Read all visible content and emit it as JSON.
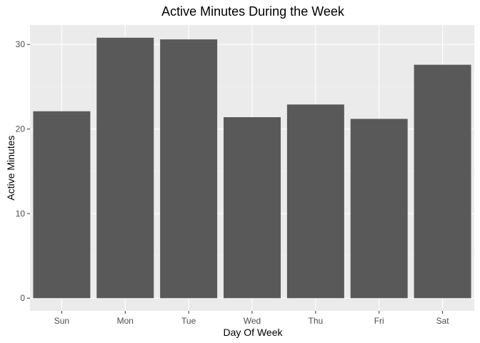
{
  "chart_data": {
    "type": "bar",
    "title": "Active Minutes During the Week",
    "xlabel": "Day Of Week",
    "ylabel": "Active Minutes",
    "categories": [
      "Sun",
      "Mon",
      "Tue",
      "Wed",
      "Thu",
      "Fri",
      "Sat"
    ],
    "values": [
      22.1,
      30.8,
      30.6,
      21.4,
      22.9,
      21.2,
      27.6
    ],
    "ylim": [
      -1.5,
      32.3
    ],
    "yticks": [
      0,
      10,
      20,
      30
    ],
    "grid": true,
    "legend": "none",
    "colors": {
      "bar": "#595959",
      "panel": "#ebebeb",
      "grid_major": "#ffffff",
      "grid_minor": "#f5f5f5",
      "tick": "#333333"
    }
  }
}
